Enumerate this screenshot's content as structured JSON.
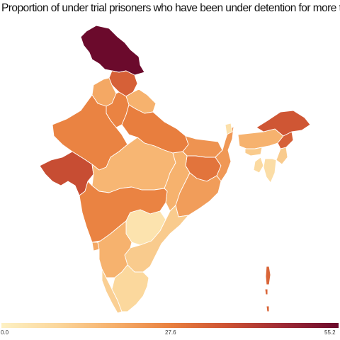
{
  "title": "Proportion of under trial prisoners who have been under detention for more than a year.",
  "legend": {
    "min_label": "0.0",
    "mid_label": "27.6",
    "max_label": "55.2",
    "min": 0.0,
    "max": 55.2,
    "colors": [
      "#fdf1c4",
      "#fbd79c",
      "#f6b06c",
      "#e9803f",
      "#cd5233",
      "#9e2a35",
      "#6b0a2c"
    ]
  },
  "regions": [
    {
      "name": "Jammu and Kashmir",
      "value": 55.2
    },
    {
      "name": "Himachal Pradesh",
      "value": 34
    },
    {
      "name": "Punjab",
      "value": 20
    },
    {
      "name": "Uttarakhand",
      "value": 18
    },
    {
      "name": "Haryana",
      "value": 27
    },
    {
      "name": "Rajasthan",
      "value": 27
    },
    {
      "name": "Uttar Pradesh",
      "value": 28
    },
    {
      "name": "Gujarat",
      "value": 38
    },
    {
      "name": "Madhya Pradesh",
      "value": 17
    },
    {
      "name": "Bihar",
      "value": 24
    },
    {
      "name": "Jharkhand",
      "value": 30
    },
    {
      "name": "West Bengal",
      "value": 23
    },
    {
      "name": "Chhattisgarh",
      "value": 18
    },
    {
      "name": "Odisha",
      "value": 22
    },
    {
      "name": "Maharashtra",
      "value": 27
    },
    {
      "name": "Telangana",
      "value": 5
    },
    {
      "name": "Andhra Pradesh",
      "value": 12
    },
    {
      "name": "Karnataka",
      "value": 18
    },
    {
      "name": "Goa",
      "value": 20
    },
    {
      "name": "Kerala",
      "value": 11
    },
    {
      "name": "Tamil Nadu",
      "value": 9
    },
    {
      "name": "Sikkim",
      "value": 6
    },
    {
      "name": "Assam",
      "value": 18
    },
    {
      "name": "Arunachal Pradesh",
      "value": 36
    },
    {
      "name": "Nagaland",
      "value": 34
    },
    {
      "name": "Manipur",
      "value": 12
    },
    {
      "name": "Mizoram",
      "value": 7
    },
    {
      "name": "Tripura",
      "value": 8
    },
    {
      "name": "Meghalaya",
      "value": 12
    },
    {
      "name": "Andaman and Nicobar Islands",
      "value": 33
    }
  ]
}
